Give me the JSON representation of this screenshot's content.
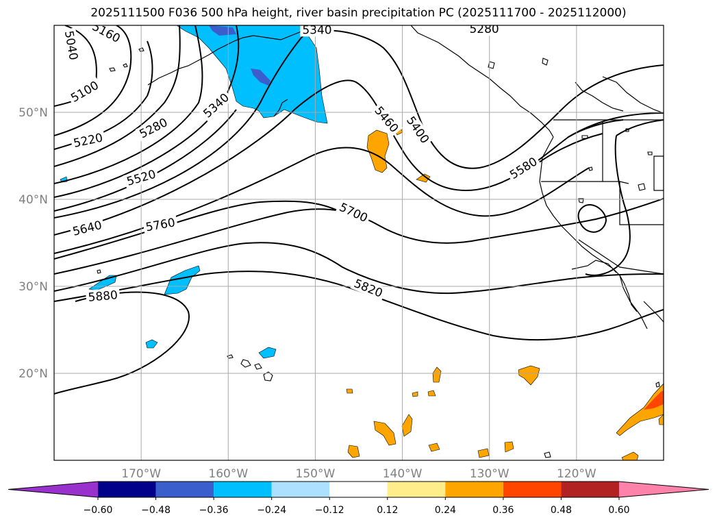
{
  "title": "2025111500 F036 500 hPa height, river basin precipitation PC (2025111700 - 2025112000)",
  "map": {
    "lon_range": [
      -180,
      -110
    ],
    "lat_range": [
      10,
      60
    ],
    "lat_ticks": [
      {
        "value": 50,
        "label": "50°N"
      },
      {
        "value": 40,
        "label": "40°N"
      },
      {
        "value": 30,
        "label": "30°N"
      },
      {
        "value": 20,
        "label": "20°N"
      }
    ],
    "lon_ticks": [
      {
        "value": -170,
        "label": "170°W"
      },
      {
        "value": -160,
        "label": "160°W"
      },
      {
        "value": -150,
        "label": "150°W"
      },
      {
        "value": -140,
        "label": "140°W"
      },
      {
        "value": -130,
        "label": "130°W"
      },
      {
        "value": -120,
        "label": "120°W"
      }
    ],
    "grid": true,
    "contour_labels": [
      {
        "text": "5040",
        "lon": -178,
        "lat": 57.7,
        "angle": 80
      },
      {
        "text": "5160",
        "lon": -174,
        "lat": 59.2,
        "angle": 28
      },
      {
        "text": "5100",
        "lon": -176.5,
        "lat": 52.4,
        "angle": -30
      },
      {
        "text": "5340",
        "lon": -149.8,
        "lat": 59.5,
        "angle": 0
      },
      {
        "text": "5280",
        "lon": -130.6,
        "lat": 59.6,
        "angle": 0
      },
      {
        "text": "5340",
        "lon": -161.4,
        "lat": 50.8,
        "angle": -42
      },
      {
        "text": "5280",
        "lon": -168.6,
        "lat": 48.2,
        "angle": -27
      },
      {
        "text": "5220",
        "lon": -176.1,
        "lat": 46.8,
        "angle": -12
      },
      {
        "text": "5460",
        "lon": -141.8,
        "lat": 49.2,
        "angle": 50
      },
      {
        "text": "5400",
        "lon": -138.2,
        "lat": 48,
        "angle": 55
      },
      {
        "text": "5520",
        "lon": -170,
        "lat": 42.5,
        "angle": -16
      },
      {
        "text": "5580",
        "lon": -126.1,
        "lat": 43.6,
        "angle": -32
      },
      {
        "text": "5700",
        "lon": -145.6,
        "lat": 38.5,
        "angle": 25
      },
      {
        "text": "5640",
        "lon": -176.2,
        "lat": 36.7,
        "angle": -14
      },
      {
        "text": "5760",
        "lon": -167.8,
        "lat": 37.1,
        "angle": -10
      },
      {
        "text": "5820",
        "lon": -143.9,
        "lat": 29.8,
        "angle": 22
      },
      {
        "text": "5880",
        "lon": -174.4,
        "lat": 28.9,
        "angle": -5
      }
    ]
  },
  "colorbar": {
    "boundaries": [
      -0.72,
      -0.6,
      -0.48,
      -0.36,
      -0.24,
      -0.12,
      0.12,
      0.24,
      0.36,
      0.48,
      0.6,
      0.72
    ],
    "colors": [
      "#9932CC",
      "#00008B",
      "#3A5FCD",
      "#00BFFF",
      "#ADDFFF",
      "#FFFFFF",
      "#FFEC8B",
      "#FFA500",
      "#FF4500",
      "#B22222",
      "#FF82AB"
    ],
    "tick_labels": [
      "−0.60",
      "−0.48",
      "−0.36",
      "−0.24",
      "−0.12",
      "0.12",
      "0.24",
      "0.36",
      "0.48",
      "0.60"
    ]
  }
}
